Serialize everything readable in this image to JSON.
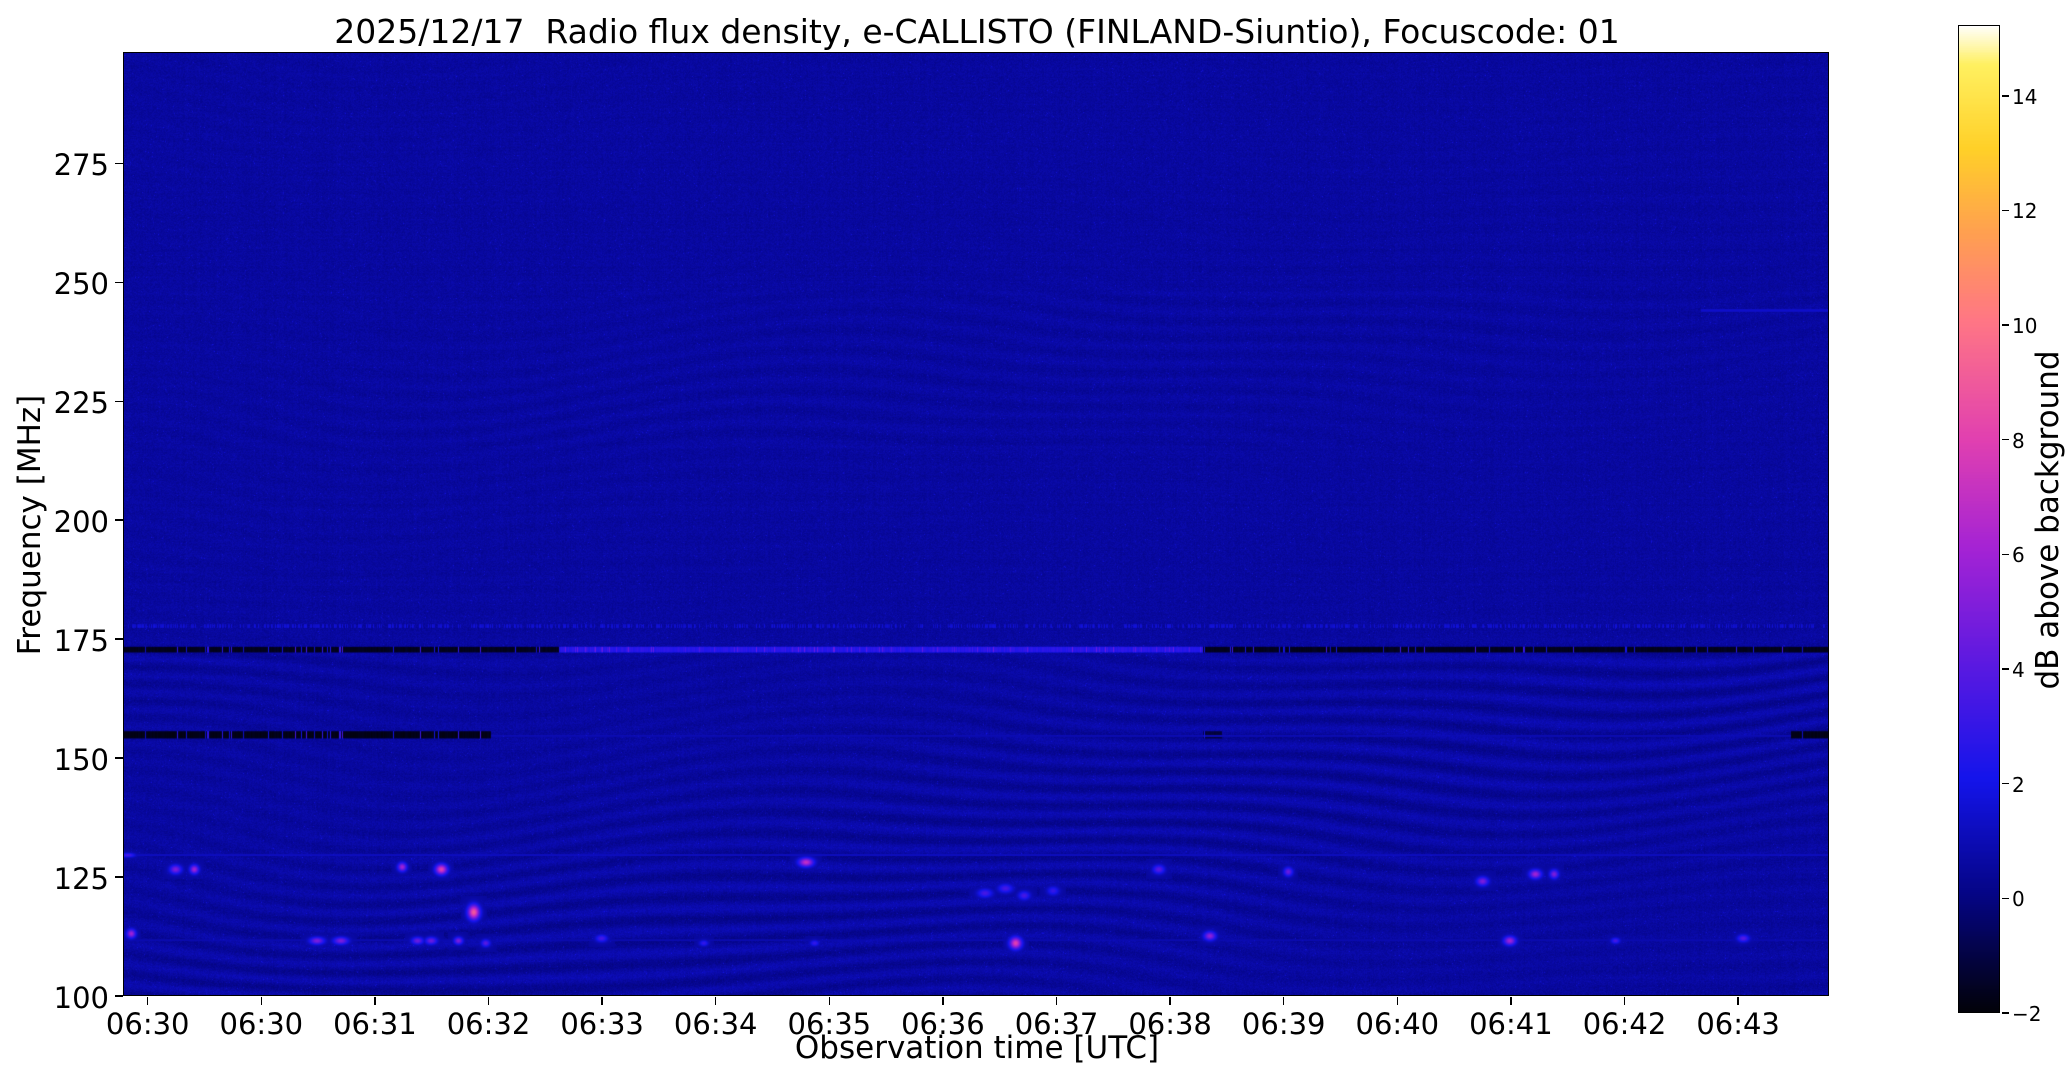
{
  "chart_data": {
    "type": "heatmap",
    "title": "2025/12/17  Radio flux density, e-CALLISTO (FINLAND-Siuntio), Focuscode: 01",
    "xlabel": "Observation time [UTC]",
    "ylabel": "Frequency [MHz]",
    "x_ticks": [
      "06:30",
      "06:30",
      "06:31",
      "06:32",
      "06:33",
      "06:34",
      "06:35",
      "06:36",
      "06:37",
      "06:38",
      "06:39",
      "06:40",
      "06:41",
      "06:42",
      "06:43"
    ],
    "y_ticks": [
      275,
      250,
      225,
      200,
      175,
      150,
      125,
      100
    ],
    "y_range_mhz": [
      100,
      298
    ],
    "background_db": 0.55,
    "grid": false,
    "colorbar": {
      "label": "dB above background",
      "ticks": [
        14,
        12,
        10,
        8,
        6,
        4,
        2,
        0,
        -2
      ],
      "range": [
        -2,
        15.2
      ]
    },
    "colormap_stops": [
      {
        "t": 0.0,
        "rgb": [
          2,
          2,
          10
        ]
      },
      {
        "t": 0.12,
        "rgb": [
          5,
          5,
          135
        ]
      },
      {
        "t": 0.235,
        "rgb": [
          20,
          20,
          235
        ]
      },
      {
        "t": 0.35,
        "rgb": [
          90,
          25,
          225
        ]
      },
      {
        "t": 0.47,
        "rgb": [
          165,
          35,
          212
        ]
      },
      {
        "t": 0.58,
        "rgb": [
          225,
          64,
          176
        ]
      },
      {
        "t": 0.7,
        "rgb": [
          255,
          118,
          133
        ]
      },
      {
        "t": 0.79,
        "rgb": [
          255,
          160,
          80
        ]
      },
      {
        "t": 0.875,
        "rgb": [
          255,
          208,
          40
        ]
      },
      {
        "t": 0.96,
        "rgb": [
          255,
          240,
          96
        ]
      },
      {
        "t": 1.0,
        "rgb": [
          255,
          255,
          255
        ]
      }
    ],
    "ripple_regions": [
      {
        "f0": 100,
        "f1": 172,
        "amp": 0.3
      },
      {
        "f0": 172,
        "f1": 215,
        "amp": 0.05
      },
      {
        "f0": 215,
        "f1": 248,
        "amp": 0.11
      },
      {
        "f0": 248,
        "f1": 298,
        "amp": 0.04
      }
    ],
    "rfi_lines": [
      {
        "freq_mhz": 172.7,
        "half_width_mhz": 0.7,
        "segments": [
          {
            "t0": 0.0,
            "t1": 0.255,
            "v": -1.8,
            "style": "black"
          },
          {
            "t0": 0.255,
            "t1": 0.633,
            "v": 2.6,
            "style": "streaky"
          },
          {
            "t0": 0.633,
            "t1": 1.001,
            "v": -1.8,
            "style": "black"
          }
        ]
      },
      {
        "freq_mhz": 154.8,
        "half_width_mhz": 0.9,
        "segments": [
          {
            "t0": 0.0,
            "t1": 0.215,
            "v": -1.9,
            "style": "black"
          },
          {
            "t0": 0.633,
            "t1": 0.644,
            "v": -1.3,
            "style": "black"
          },
          {
            "t0": 0.978,
            "t1": 1.001,
            "v": -1.9,
            "style": "black"
          }
        ]
      },
      {
        "freq_mhz": 154.6,
        "half_width_mhz": 0.22,
        "segments": [
          {
            "t0": 0.215,
            "t1": 0.978,
            "v": 1.05,
            "style": "plain"
          }
        ]
      },
      {
        "freq_mhz": 177.6,
        "half_width_mhz": 0.45,
        "segments": [
          {
            "t0": 0.0,
            "t1": 1.001,
            "v": 1.35,
            "style": "dotty"
          }
        ]
      },
      {
        "freq_mhz": 129.5,
        "half_width_mhz": 0.22,
        "segments": [
          {
            "t0": 0.0,
            "t1": 1.001,
            "v": 1.3,
            "style": "plain"
          }
        ]
      },
      {
        "freq_mhz": 111.6,
        "half_width_mhz": 0.22,
        "segments": [
          {
            "t0": 0.0,
            "t1": 1.001,
            "v": 0.95,
            "style": "plain"
          }
        ]
      },
      {
        "freq_mhz": 244.0,
        "half_width_mhz": 0.35,
        "segments": [
          {
            "t0": 0.925,
            "t1": 1.001,
            "v": 1.45,
            "style": "plain"
          }
        ]
      }
    ],
    "bright_spots": [
      {
        "t": 0.002,
        "f": 129.5,
        "db": 3.5,
        "sx": 5,
        "sy": 1.5
      },
      {
        "t": 0.004,
        "f": 113.0,
        "db": 6.0,
        "sx": 3,
        "sy": 3
      },
      {
        "t": 0.03,
        "f": 126.5,
        "db": 5.0,
        "sx": 4,
        "sy": 3
      },
      {
        "t": 0.041,
        "f": 126.5,
        "db": 6.0,
        "sx": 3,
        "sy": 3
      },
      {
        "t": 0.113,
        "f": 111.5,
        "db": 5.0,
        "sx": 5,
        "sy": 2.5
      },
      {
        "t": 0.127,
        "f": 111.5,
        "db": 5.0,
        "sx": 5,
        "sy": 2.5
      },
      {
        "t": 0.163,
        "f": 127.0,
        "db": 6.0,
        "sx": 3,
        "sy": 3
      },
      {
        "t": 0.172,
        "f": 111.5,
        "db": 4.5,
        "sx": 4,
        "sy": 2.5
      },
      {
        "t": 0.18,
        "f": 111.5,
        "db": 4.5,
        "sx": 4,
        "sy": 2.5
      },
      {
        "t": 0.186,
        "f": 126.5,
        "db": 8.0,
        "sx": 4,
        "sy": 3.5
      },
      {
        "t": 0.196,
        "f": 111.5,
        "db": 5.0,
        "sx": 3,
        "sy": 2.5
      },
      {
        "t": 0.205,
        "f": 117.5,
        "db": 9.0,
        "sx": 4,
        "sy": 5
      },
      {
        "t": 0.212,
        "f": 111.0,
        "db": 4.0,
        "sx": 3,
        "sy": 2.5
      },
      {
        "t": 0.28,
        "f": 112.0,
        "db": 3.5,
        "sx": 4,
        "sy": 2.5
      },
      {
        "t": 0.34,
        "f": 111.0,
        "db": 3.0,
        "sx": 3,
        "sy": 2
      },
      {
        "t": 0.4,
        "f": 128.0,
        "db": 7.0,
        "sx": 5,
        "sy": 3
      },
      {
        "t": 0.405,
        "f": 111.0,
        "db": 3.0,
        "sx": 3,
        "sy": 2
      },
      {
        "t": 0.505,
        "f": 121.5,
        "db": 3.5,
        "sx": 5,
        "sy": 3
      },
      {
        "t": 0.517,
        "f": 122.5,
        "db": 3.5,
        "sx": 5,
        "sy": 3
      },
      {
        "t": 0.523,
        "f": 111.0,
        "db": 8.0,
        "sx": 4,
        "sy": 4
      },
      {
        "t": 0.528,
        "f": 121.0,
        "db": 3.5,
        "sx": 4,
        "sy": 3
      },
      {
        "t": 0.545,
        "f": 122.0,
        "db": 3.0,
        "sx": 4,
        "sy": 3
      },
      {
        "t": 0.607,
        "f": 126.5,
        "db": 4.0,
        "sx": 4,
        "sy": 3
      },
      {
        "t": 0.637,
        "f": 112.5,
        "db": 5.5,
        "sx": 4,
        "sy": 3
      },
      {
        "t": 0.683,
        "f": 126.0,
        "db": 4.5,
        "sx": 3,
        "sy": 3
      },
      {
        "t": 0.797,
        "f": 124.0,
        "db": 5.0,
        "sx": 4,
        "sy": 3
      },
      {
        "t": 0.813,
        "f": 111.5,
        "db": 6.0,
        "sx": 4,
        "sy": 3
      },
      {
        "t": 0.828,
        "f": 125.5,
        "db": 6.0,
        "sx": 4,
        "sy": 3
      },
      {
        "t": 0.839,
        "f": 125.5,
        "db": 5.0,
        "sx": 3,
        "sy": 3
      },
      {
        "t": 0.875,
        "f": 111.5,
        "db": 3.5,
        "sx": 3,
        "sy": 2
      },
      {
        "t": 0.95,
        "f": 112.0,
        "db": 4.0,
        "sx": 4,
        "sy": 2.5
      }
    ]
  }
}
